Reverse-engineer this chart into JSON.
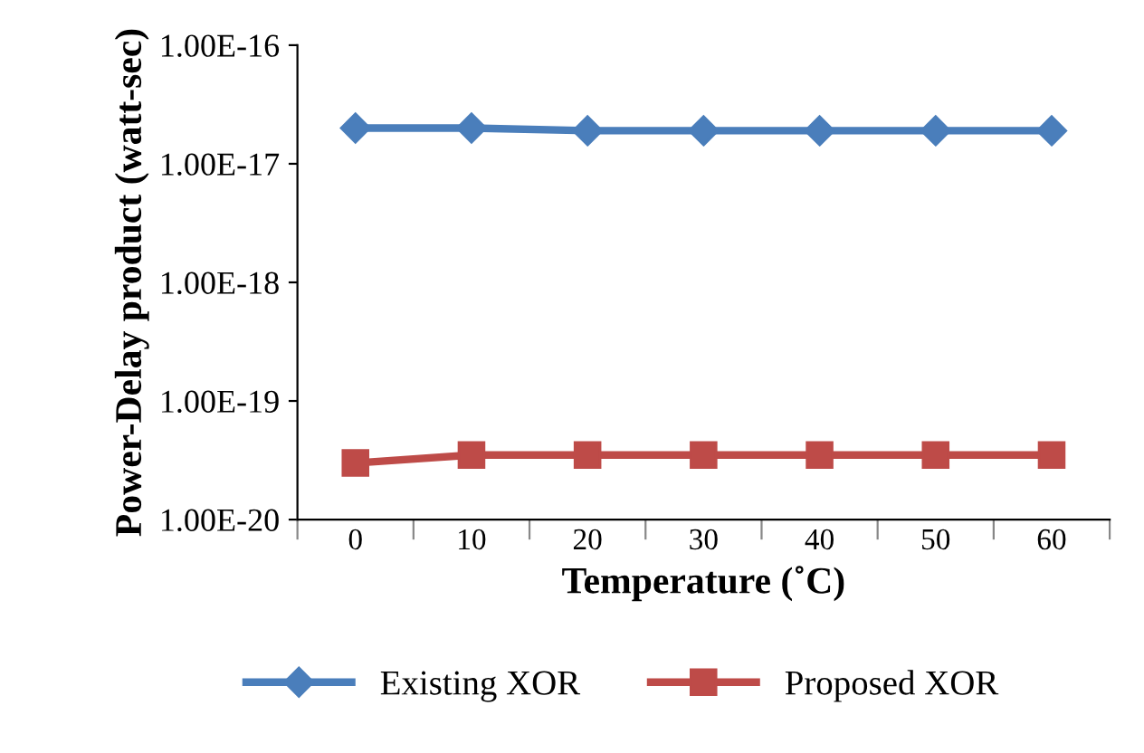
{
  "chart_data": {
    "type": "line",
    "xlabel": "Temperature (˚C)",
    "ylabel": "Power-Delay product (watt-sec)",
    "categories": [
      "0",
      "10",
      "20",
      "30",
      "40",
      "50",
      "60"
    ],
    "series": [
      {
        "name": "Existing XOR",
        "color": "#4a7ebb",
        "marker": "diamond",
        "values": [
          2e-17,
          2e-17,
          1.9e-17,
          1.9e-17,
          1.9e-17,
          1.9e-17,
          1.9e-17
        ]
      },
      {
        "name": "Proposed XOR",
        "color": "#be4b48",
        "marker": "square",
        "values": [
          3e-20,
          3.5e-20,
          3.5e-20,
          3.5e-20,
          3.5e-20,
          3.5e-20,
          3.5e-20
        ]
      }
    ],
    "log": "y",
    "ylim": [
      1e-20,
      1e-16
    ],
    "yticks": [
      {
        "value": 1e-20,
        "label": "1.00E-20"
      },
      {
        "value": 1e-19,
        "label": "1.00E-19"
      },
      {
        "value": 1e-18,
        "label": "1.00E-18"
      },
      {
        "value": 1e-17,
        "label": "1.00E-17"
      },
      {
        "value": 1e-16,
        "label": "1.00E-16"
      }
    ],
    "grid": false,
    "legend": "bottom",
    "line_style": "solid"
  }
}
